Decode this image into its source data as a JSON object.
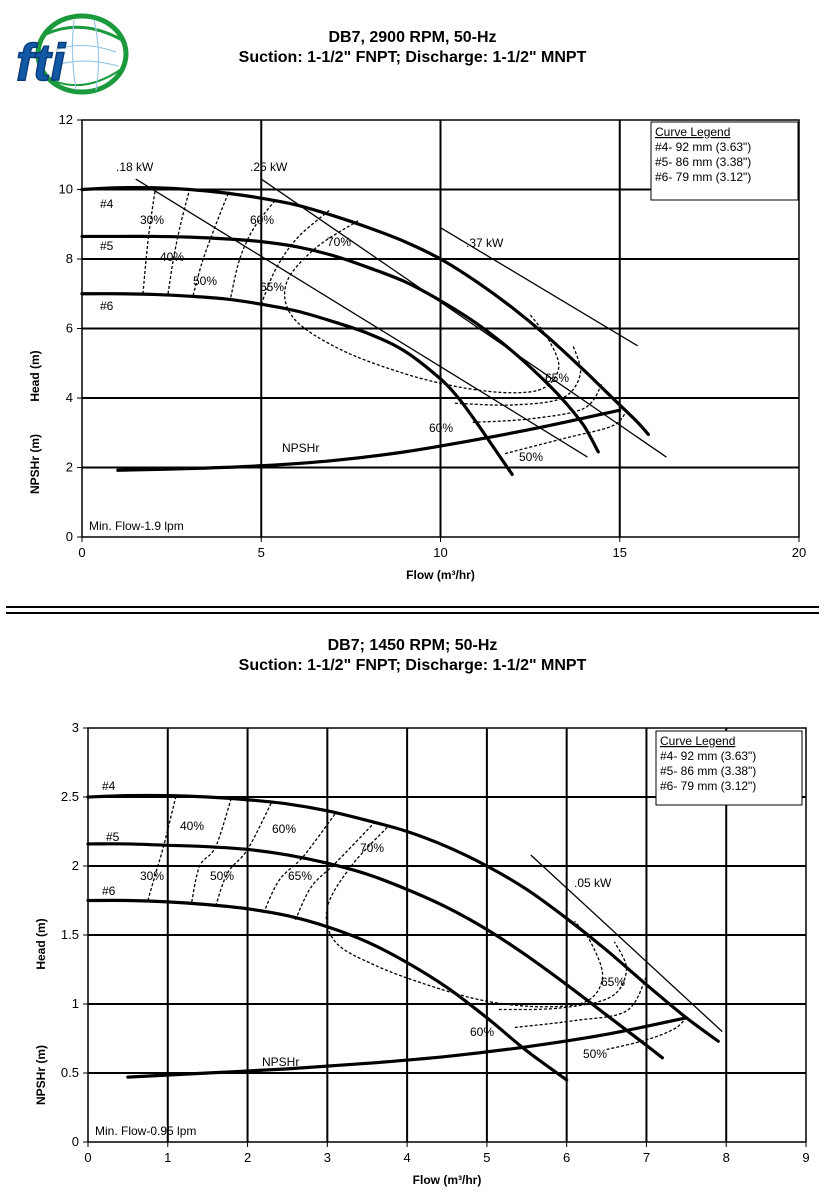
{
  "logo": {
    "text": "fti"
  },
  "chart_data": [
    {
      "type": "line",
      "title_line1": "DB7, 2900 RPM, 50-Hz",
      "title_line2": "Suction: 1-1/2\" FNPT; Discharge: 1-1/2\" MNPT",
      "xlabel": "Flow (m³/hr)",
      "ylabel_head": "Head (m)",
      "ylabel_npsh": "NPSHr (m)",
      "xlim": [
        0,
        20
      ],
      "ylim": [
        0,
        12
      ],
      "xticks": [
        "0",
        "5",
        "10",
        "15",
        "20"
      ],
      "yticks": [
        "0",
        "2",
        "4",
        "6",
        "8",
        "10",
        "12"
      ],
      "grid": true,
      "legend": {
        "title": "Curve Legend",
        "entries": [
          "#4- 92 mm (3.63\")",
          "#5- 86 mm (3.38\")",
          "#6- 79 mm (3.12\")"
        ],
        "placement": "top-right"
      },
      "series": [
        {
          "name": "#4",
          "x": [
            0,
            1,
            2,
            3,
            4,
            5,
            6,
            7,
            8,
            9,
            10,
            11,
            12,
            13,
            14,
            14.5,
            15,
            15.5,
            15.8
          ],
          "y": [
            10,
            10.05,
            10.05,
            10,
            9.9,
            9.75,
            9.55,
            9.25,
            8.9,
            8.5,
            8.0,
            7.35,
            6.6,
            5.75,
            4.8,
            4.3,
            3.8,
            3.3,
            2.95
          ]
        },
        {
          "name": "#5",
          "x": [
            0,
            1,
            2,
            3,
            4,
            5,
            6,
            7,
            8,
            9,
            10,
            11,
            12,
            13,
            13.5,
            14,
            14.4
          ],
          "y": [
            8.65,
            8.65,
            8.65,
            8.63,
            8.58,
            8.5,
            8.35,
            8.1,
            7.75,
            7.35,
            6.8,
            6.15,
            5.35,
            4.4,
            3.85,
            3.2,
            2.45
          ]
        },
        {
          "name": "#6",
          "x": [
            0,
            1,
            2,
            3,
            4,
            5,
            6,
            7,
            8,
            9,
            10,
            10.5,
            11,
            11.5,
            12
          ],
          "y": [
            7.0,
            7.0,
            6.98,
            6.93,
            6.85,
            6.7,
            6.5,
            6.2,
            5.85,
            5.35,
            4.55,
            4.0,
            3.3,
            2.55,
            1.8
          ]
        },
        {
          "name": "NPSHr",
          "x": [
            1,
            3,
            5,
            7,
            9,
            11,
            13,
            15
          ],
          "y": [
            1.92,
            1.97,
            2.05,
            2.2,
            2.45,
            2.8,
            3.2,
            3.65
          ]
        }
      ],
      "power_labels": [
        ".18 kW",
        ".25 kW",
        ".37 kW"
      ],
      "power_lines": [
        {
          "x": [
            1.5,
            14.1
          ],
          "y": [
            10.3,
            2.3
          ]
        },
        {
          "x": [
            5.0,
            16.3
          ],
          "y": [
            10.3,
            2.3
          ]
        },
        {
          "x": [
            10.0,
            15.5
          ],
          "y": [
            8.9,
            5.5
          ]
        }
      ],
      "efficiency_labels": [
        "30%",
        "40%",
        "50%",
        "60%",
        "65%",
        "70%",
        "65%",
        "60%",
        "50%"
      ],
      "efficiency_lines": [
        {
          "label": "30%",
          "x": [
            1.7,
            1.85,
            2.05
          ],
          "y": [
            7.0,
            8.6,
            10.05
          ]
        },
        {
          "label": "40%",
          "x": [
            2.4,
            2.55,
            2.75,
            3.0
          ],
          "y": [
            7.0,
            8.0,
            9.0,
            10.0
          ]
        },
        {
          "label": "50%",
          "x": [
            3.1,
            3.35,
            3.7,
            4.1
          ],
          "y": [
            6.95,
            7.9,
            8.9,
            9.95
          ]
        },
        {
          "label": "60% left",
          "x": [
            4.15,
            4.4,
            4.8,
            5.4
          ],
          "y": [
            6.9,
            8.0,
            8.9,
            9.7
          ]
        },
        {
          "label": "65% left",
          "x": [
            5.0,
            5.4,
            6.0,
            6.9
          ],
          "y": [
            6.7,
            7.7,
            8.6,
            9.4
          ]
        },
        {
          "label": "70% loop",
          "x": [
            7.7,
            6.5,
            5.7,
            5.9,
            7.2,
            9.0,
            10.6,
            12.0,
            12.9,
            13.3,
            13.0,
            12.5
          ],
          "y": [
            9.1,
            8.3,
            7.3,
            6.3,
            5.4,
            4.7,
            4.3,
            4.15,
            4.3,
            4.9,
            5.7,
            6.4
          ]
        },
        {
          "label": "65% right",
          "x": [
            10.4,
            12.0,
            13.4,
            13.9,
            13.7
          ],
          "y": [
            3.85,
            3.8,
            4.0,
            4.7,
            5.5
          ]
        },
        {
          "label": "60% right",
          "x": [
            10.9,
            12.5,
            14.0,
            14.5
          ],
          "y": [
            3.3,
            3.4,
            3.7,
            4.4
          ]
        },
        {
          "label": "50%",
          "x": [
            11.8,
            13.5,
            14.8,
            15.2
          ],
          "y": [
            2.4,
            2.85,
            3.2,
            3.65
          ]
        }
      ],
      "annotation": "Min. Flow-1.9 lpm"
    },
    {
      "type": "line",
      "title_line1": "DB7; 1450 RPM; 50-Hz",
      "title_line2": "Suction: 1-1/2\" FNPT; Discharge: 1-1/2\" MNPT",
      "xlabel": "Flow (m³/hr)",
      "ylabel_head": "Head (m)",
      "ylabel_npsh": "NPSHr (m)",
      "xlim": [
        0,
        9
      ],
      "ylim": [
        0,
        3
      ],
      "xticks": [
        "0",
        "1",
        "2",
        "3",
        "4",
        "5",
        "6",
        "7",
        "8",
        "9"
      ],
      "yticks": [
        "0",
        "0.5",
        "1",
        "1.5",
        "2",
        "2.5",
        "3"
      ],
      "grid": true,
      "legend": {
        "title": "Curve Legend",
        "entries": [
          "#4- 92 mm (3.63\")",
          "#5- 86 mm (3.38\")",
          "#6- 79 mm (3.12\")"
        ],
        "placement": "top-right"
      },
      "series": [
        {
          "name": "#4",
          "x": [
            0,
            0.5,
            1,
            1.5,
            2,
            2.5,
            3,
            3.5,
            4,
            4.5,
            5,
            5.5,
            6,
            6.5,
            7,
            7.5,
            7.9
          ],
          "y": [
            2.5,
            2.51,
            2.51,
            2.5,
            2.48,
            2.45,
            2.4,
            2.33,
            2.25,
            2.14,
            2.0,
            1.83,
            1.62,
            1.39,
            1.14,
            0.9,
            0.73
          ]
        },
        {
          "name": "#5",
          "x": [
            0,
            0.5,
            1,
            1.5,
            2,
            2.5,
            3,
            3.5,
            4,
            4.5,
            5,
            5.5,
            6,
            6.5,
            7,
            7.2
          ],
          "y": [
            2.16,
            2.16,
            2.15,
            2.14,
            2.12,
            2.08,
            2.02,
            1.94,
            1.83,
            1.7,
            1.54,
            1.35,
            1.14,
            0.92,
            0.7,
            0.61
          ]
        },
        {
          "name": "#6",
          "x": [
            0,
            0.5,
            1,
            1.5,
            2,
            2.5,
            3,
            3.5,
            4,
            4.5,
            5,
            5.5,
            6
          ],
          "y": [
            1.75,
            1.75,
            1.74,
            1.72,
            1.69,
            1.64,
            1.56,
            1.45,
            1.3,
            1.12,
            0.9,
            0.66,
            0.45
          ]
        },
        {
          "name": "NPSHr",
          "x": [
            0.5,
            1.5,
            2.5,
            3.5,
            4.5,
            5.5,
            6.5,
            7.5
          ],
          "y": [
            0.47,
            0.5,
            0.53,
            0.57,
            0.62,
            0.69,
            0.78,
            0.9
          ]
        }
      ],
      "power_labels": [
        ".05 kW"
      ],
      "power_lines": [
        {
          "x": [
            5.55,
            7.95
          ],
          "y": [
            2.08,
            0.8
          ]
        }
      ],
      "efficiency_labels": [
        "30%",
        "40%",
        "50%",
        "60%",
        "65%",
        "70%",
        "65%",
        "60%",
        "50%"
      ],
      "efficiency_lines": [
        {
          "label": "30%",
          "x": [
            0.75,
            0.85,
            0.95,
            1.1
          ],
          "y": [
            1.75,
            1.95,
            2.15,
            2.5
          ]
        },
        {
          "label": "40%",
          "x": [
            1.3,
            1.4,
            1.6,
            1.8
          ],
          "y": [
            1.74,
            2.0,
            2.14,
            2.5
          ]
        },
        {
          "label": "50%",
          "x": [
            1.6,
            1.75,
            2.0,
            2.3
          ],
          "y": [
            1.71,
            1.95,
            2.12,
            2.46
          ]
        },
        {
          "label": "60% left",
          "x": [
            2.2,
            2.4,
            2.7,
            3.1
          ],
          "y": [
            1.66,
            1.9,
            2.07,
            2.38
          ]
        },
        {
          "label": "65% left",
          "x": [
            2.6,
            2.8,
            3.1,
            3.6
          ],
          "y": [
            1.61,
            1.85,
            2.02,
            2.32
          ]
        },
        {
          "label": "70% loop",
          "x": [
            3.75,
            3.3,
            3.0,
            3.1,
            3.6,
            4.3,
            5.0,
            5.7,
            6.25,
            6.45,
            6.3,
            6.1
          ],
          "y": [
            2.28,
            2.0,
            1.7,
            1.45,
            1.28,
            1.13,
            1.02,
            0.98,
            1.02,
            1.2,
            1.45,
            1.6
          ]
        },
        {
          "label": "65% right",
          "x": [
            5.15,
            5.9,
            6.55,
            6.75,
            6.6
          ],
          "y": [
            0.96,
            0.97,
            1.05,
            1.25,
            1.45
          ]
        },
        {
          "label": "60% right",
          "x": [
            5.35,
            6.1,
            6.75,
            7.0
          ],
          "y": [
            0.83,
            0.88,
            0.95,
            1.2
          ]
        },
        {
          "label": "50%",
          "x": [
            6.5,
            7.0,
            7.35,
            7.5
          ],
          "y": [
            0.67,
            0.74,
            0.82,
            0.9
          ]
        }
      ],
      "annotation": "Min. Flow-0.95 lpm"
    }
  ]
}
